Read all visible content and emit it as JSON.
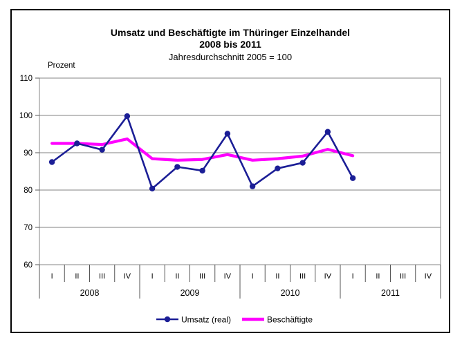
{
  "chart_data": {
    "type": "line",
    "title": "Umsatz und Beschäftigte im Thüringer Einzelhandel",
    "subtitle": "2008 bis 2011",
    "subsubtitle": "Jahresdurchschnitt 2005 = 100",
    "ylabel": "Prozent",
    "ylim": [
      60,
      110
    ],
    "yticks": [
      60,
      70,
      80,
      90,
      100,
      110
    ],
    "grid": true,
    "legend_position": "bottom-center",
    "years": [
      "2008",
      "2009",
      "2010",
      "2011"
    ],
    "quarters": [
      "I",
      "II",
      "III",
      "IV"
    ],
    "categories": [
      "2008 I",
      "2008 II",
      "2008 III",
      "2008 IV",
      "2009 I",
      "2009 II",
      "2009 III",
      "2009 IV",
      "2010 I",
      "2010 II",
      "2010 III",
      "2010 IV",
      "2011 I"
    ],
    "series": [
      {
        "name": "Umsatz (real)",
        "color": "#1B1E96",
        "marker": "circle",
        "values": [
          87.5,
          92.5,
          90.8,
          99.8,
          80.4,
          86.2,
          85.2,
          95.1,
          81.0,
          85.8,
          87.3,
          95.6,
          83.2
        ]
      },
      {
        "name": "Beschäftigte",
        "color": "#FF00FF",
        "marker": "none",
        "values": [
          92.5,
          92.5,
          92.2,
          93.7,
          88.4,
          88.0,
          88.2,
          89.5,
          88.0,
          88.4,
          89.1,
          90.9,
          89.2
        ]
      }
    ],
    "colors": {
      "background": "#FFFFFF",
      "plot_border": "#999999",
      "grid": "#808080",
      "tick": "#555555",
      "text": "#000000",
      "frame": "#000000"
    }
  }
}
